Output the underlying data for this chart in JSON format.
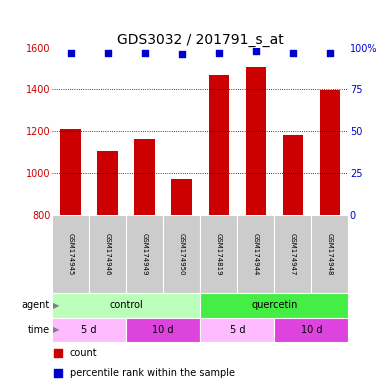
{
  "title": "GDS3032 / 201791_s_at",
  "samples": [
    "GSM174945",
    "GSM174946",
    "GSM174949",
    "GSM174950",
    "GSM174819",
    "GSM174944",
    "GSM174947",
    "GSM174948"
  ],
  "counts": [
    1210,
    1103,
    1162,
    970,
    1470,
    1505,
    1182,
    1395
  ],
  "percentile_ranks": [
    97,
    97,
    97,
    96,
    97,
    98,
    97,
    97
  ],
  "ylim_left": [
    800,
    1600
  ],
  "ylim_right": [
    0,
    100
  ],
  "yticks_left": [
    800,
    1000,
    1200,
    1400,
    1600
  ],
  "yticks_right": [
    0,
    25,
    50,
    75,
    100
  ],
  "bar_color": "#cc0000",
  "scatter_color": "#0000cc",
  "grid_color": "#000000",
  "agent_groups": [
    {
      "label": "control",
      "start": 0,
      "end": 4,
      "color": "#bbffbb"
    },
    {
      "label": "quercetin",
      "start": 4,
      "end": 8,
      "color": "#44ee44"
    }
  ],
  "time_groups": [
    {
      "label": "5 d",
      "start": 0,
      "end": 2,
      "color": "#ffbbff"
    },
    {
      "label": "10 d",
      "start": 2,
      "end": 4,
      "color": "#dd44dd"
    },
    {
      "label": "5 d",
      "start": 4,
      "end": 6,
      "color": "#ffbbff"
    },
    {
      "label": "10 d",
      "start": 6,
      "end": 8,
      "color": "#dd44dd"
    }
  ],
  "sample_bg_color": "#cccccc",
  "legend_count_color": "#cc0000",
  "legend_pct_color": "#0000cc",
  "left_axis_color": "#cc0000",
  "right_axis_color": "#0000cc",
  "tick_fontsize": 7,
  "title_fontsize": 10,
  "sample_fontsize": 5,
  "row_label_fontsize": 7,
  "group_label_fontsize": 7,
  "legend_fontsize": 7
}
